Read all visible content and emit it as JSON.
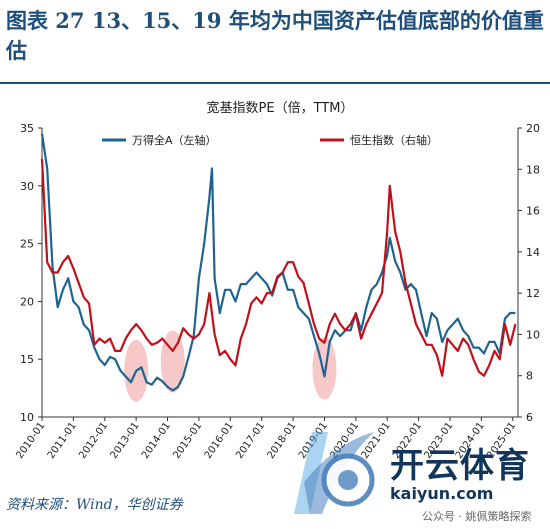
{
  "header": {
    "title": "图表 27   13、15、19 年均为中国资产估值底部的价值重估"
  },
  "footer": {
    "source": "资料来源：Wind，华创证券"
  },
  "watermark": {
    "brand": "开云体育",
    "url": "kaiyun.com",
    "wechat": "公众号 · 姚佩策略探索"
  },
  "colors": {
    "wande": "#1f6391",
    "hsi": "#c0101a",
    "highlight": "#f3b5b5",
    "title": "#1f4e79"
  },
  "chart_data": {
    "type": "line",
    "title": "宽基指数PE（倍，TTM）",
    "legend_position": "top",
    "grid": false,
    "x_ticks": [
      "2010-01",
      "2011-01",
      "2012-01",
      "2013-01",
      "2014-01",
      "2015-01",
      "2016-01",
      "2017-01",
      "2018-01",
      "2019-01",
      "2020-01",
      "2021-01",
      "2022-01",
      "2023-01",
      "2024-01",
      "2025-01"
    ],
    "xlim": [
      "2010-01",
      "2025-03"
    ],
    "y_left": {
      "ylim": [
        10,
        35
      ],
      "ticks": [
        10,
        15,
        20,
        25,
        30,
        35
      ]
    },
    "y_right": {
      "ylim": [
        6,
        20
      ],
      "ticks": [
        6,
        8,
        10,
        12,
        14,
        16,
        18,
        20
      ]
    },
    "highlights": [
      {
        "x_center": "2013-01",
        "y_center": 14.0
      },
      {
        "x_center": "2014-03",
        "y_center": 14.8
      },
      {
        "x_center": "2019-01",
        "y_center": 14.2
      }
    ],
    "series": [
      {
        "name": "万得全A（左轴）",
        "axis": "left",
        "x": [
          "2010-01",
          "2010-03",
          "2010-05",
          "2010-07",
          "2010-09",
          "2010-11",
          "2011-01",
          "2011-03",
          "2011-05",
          "2011-07",
          "2011-09",
          "2011-11",
          "2012-01",
          "2012-03",
          "2012-05",
          "2012-07",
          "2012-09",
          "2012-11",
          "2013-01",
          "2013-03",
          "2013-05",
          "2013-07",
          "2013-09",
          "2013-11",
          "2014-01",
          "2014-03",
          "2014-05",
          "2014-07",
          "2014-09",
          "2014-11",
          "2015-01",
          "2015-03",
          "2015-05",
          "2015-06",
          "2015-07",
          "2015-09",
          "2015-11",
          "2016-01",
          "2016-03",
          "2016-05",
          "2016-07",
          "2016-09",
          "2016-11",
          "2017-01",
          "2017-03",
          "2017-05",
          "2017-07",
          "2017-09",
          "2017-11",
          "2018-01",
          "2018-03",
          "2018-05",
          "2018-07",
          "2018-09",
          "2018-11",
          "2019-01",
          "2019-03",
          "2019-05",
          "2019-07",
          "2019-09",
          "2019-11",
          "2020-01",
          "2020-03",
          "2020-05",
          "2020-07",
          "2020-09",
          "2020-11",
          "2021-01",
          "2021-02",
          "2021-04",
          "2021-06",
          "2021-08",
          "2021-10",
          "2021-12",
          "2022-02",
          "2022-04",
          "2022-06",
          "2022-08",
          "2022-10",
          "2022-12",
          "2023-02",
          "2023-04",
          "2023-06",
          "2023-08",
          "2023-10",
          "2023-12",
          "2024-02",
          "2024-04",
          "2024-06",
          "2024-08",
          "2024-10",
          "2024-12",
          "2025-02"
        ],
        "values": [
          34.5,
          31.5,
          23,
          19.5,
          21,
          22,
          20,
          19.5,
          18,
          17.5,
          16,
          15,
          14.5,
          15.2,
          15,
          14,
          13.5,
          13,
          14,
          14.3,
          13,
          12.8,
          13.4,
          13.1,
          12.6,
          12.3,
          12.6,
          13.5,
          15.2,
          17,
          22,
          25,
          29,
          31.5,
          22,
          19,
          21,
          21,
          20,
          21.5,
          21.5,
          22,
          22.5,
          22,
          21.5,
          20.5,
          22,
          22.5,
          21,
          21,
          19.5,
          19,
          18.5,
          17,
          15.5,
          13.5,
          16.5,
          17.5,
          17,
          17.5,
          17.5,
          19,
          17.5,
          19.5,
          21,
          21.5,
          22.5,
          24,
          25.5,
          23.5,
          22.5,
          21,
          21.5,
          21,
          19,
          17,
          19,
          18.5,
          16.5,
          17.5,
          18,
          18.5,
          17.5,
          17,
          16,
          16,
          15.5,
          16.5,
          16.5,
          15.5,
          18.5,
          19,
          19
        ]
      },
      {
        "name": "恒生指数（右轴）",
        "axis": "right",
        "x": [
          "2010-01",
          "2010-03",
          "2010-05",
          "2010-07",
          "2010-09",
          "2010-11",
          "2011-01",
          "2011-03",
          "2011-05",
          "2011-07",
          "2011-09",
          "2011-11",
          "2012-01",
          "2012-03",
          "2012-05",
          "2012-07",
          "2012-09",
          "2012-11",
          "2013-01",
          "2013-03",
          "2013-05",
          "2013-07",
          "2013-09",
          "2013-11",
          "2014-01",
          "2014-03",
          "2014-05",
          "2014-07",
          "2014-09",
          "2014-11",
          "2015-01",
          "2015-03",
          "2015-05",
          "2015-07",
          "2015-09",
          "2015-11",
          "2016-01",
          "2016-03",
          "2016-05",
          "2016-07",
          "2016-09",
          "2016-11",
          "2017-01",
          "2017-03",
          "2017-05",
          "2017-07",
          "2017-09",
          "2017-11",
          "2018-01",
          "2018-03",
          "2018-05",
          "2018-07",
          "2018-09",
          "2018-11",
          "2019-01",
          "2019-03",
          "2019-05",
          "2019-07",
          "2019-09",
          "2019-11",
          "2020-01",
          "2020-03",
          "2020-05",
          "2020-07",
          "2020-09",
          "2020-11",
          "2021-01",
          "2021-02",
          "2021-04",
          "2021-06",
          "2021-08",
          "2021-10",
          "2021-12",
          "2022-02",
          "2022-04",
          "2022-06",
          "2022-08",
          "2022-10",
          "2022-12",
          "2023-02",
          "2023-04",
          "2023-06",
          "2023-08",
          "2023-10",
          "2023-12",
          "2024-02",
          "2024-04",
          "2024-06",
          "2024-08",
          "2024-10",
          "2024-12",
          "2025-02"
        ],
        "values": [
          18.5,
          13.5,
          13,
          13,
          13.5,
          13.8,
          13.2,
          12.5,
          11.8,
          11.5,
          9.5,
          9.8,
          9.6,
          9.8,
          9.2,
          9.2,
          9.8,
          10.2,
          10.5,
          10.2,
          9.8,
          9.5,
          9.6,
          9.8,
          9.5,
          9.2,
          9.6,
          10.3,
          10,
          9.8,
          10,
          10.5,
          12,
          10,
          9,
          9.2,
          8.8,
          8.5,
          9.8,
          10.5,
          11.5,
          11.8,
          11.5,
          12,
          12,
          12.8,
          13,
          13.5,
          13.5,
          12.8,
          12.5,
          11.5,
          10.5,
          9.8,
          9.6,
          10.5,
          11,
          10.5,
          10.2,
          10.5,
          11,
          9.8,
          10.5,
          11,
          11.5,
          12,
          15,
          17.2,
          15,
          14,
          12.5,
          11.5,
          10.5,
          10,
          9.5,
          9.5,
          9,
          8,
          9.8,
          9.5,
          9.2,
          9.8,
          9.5,
          8.8,
          8.2,
          8,
          8.5,
          9.2,
          8.8,
          10.5,
          9.5,
          10.5
        ]
      }
    ]
  }
}
